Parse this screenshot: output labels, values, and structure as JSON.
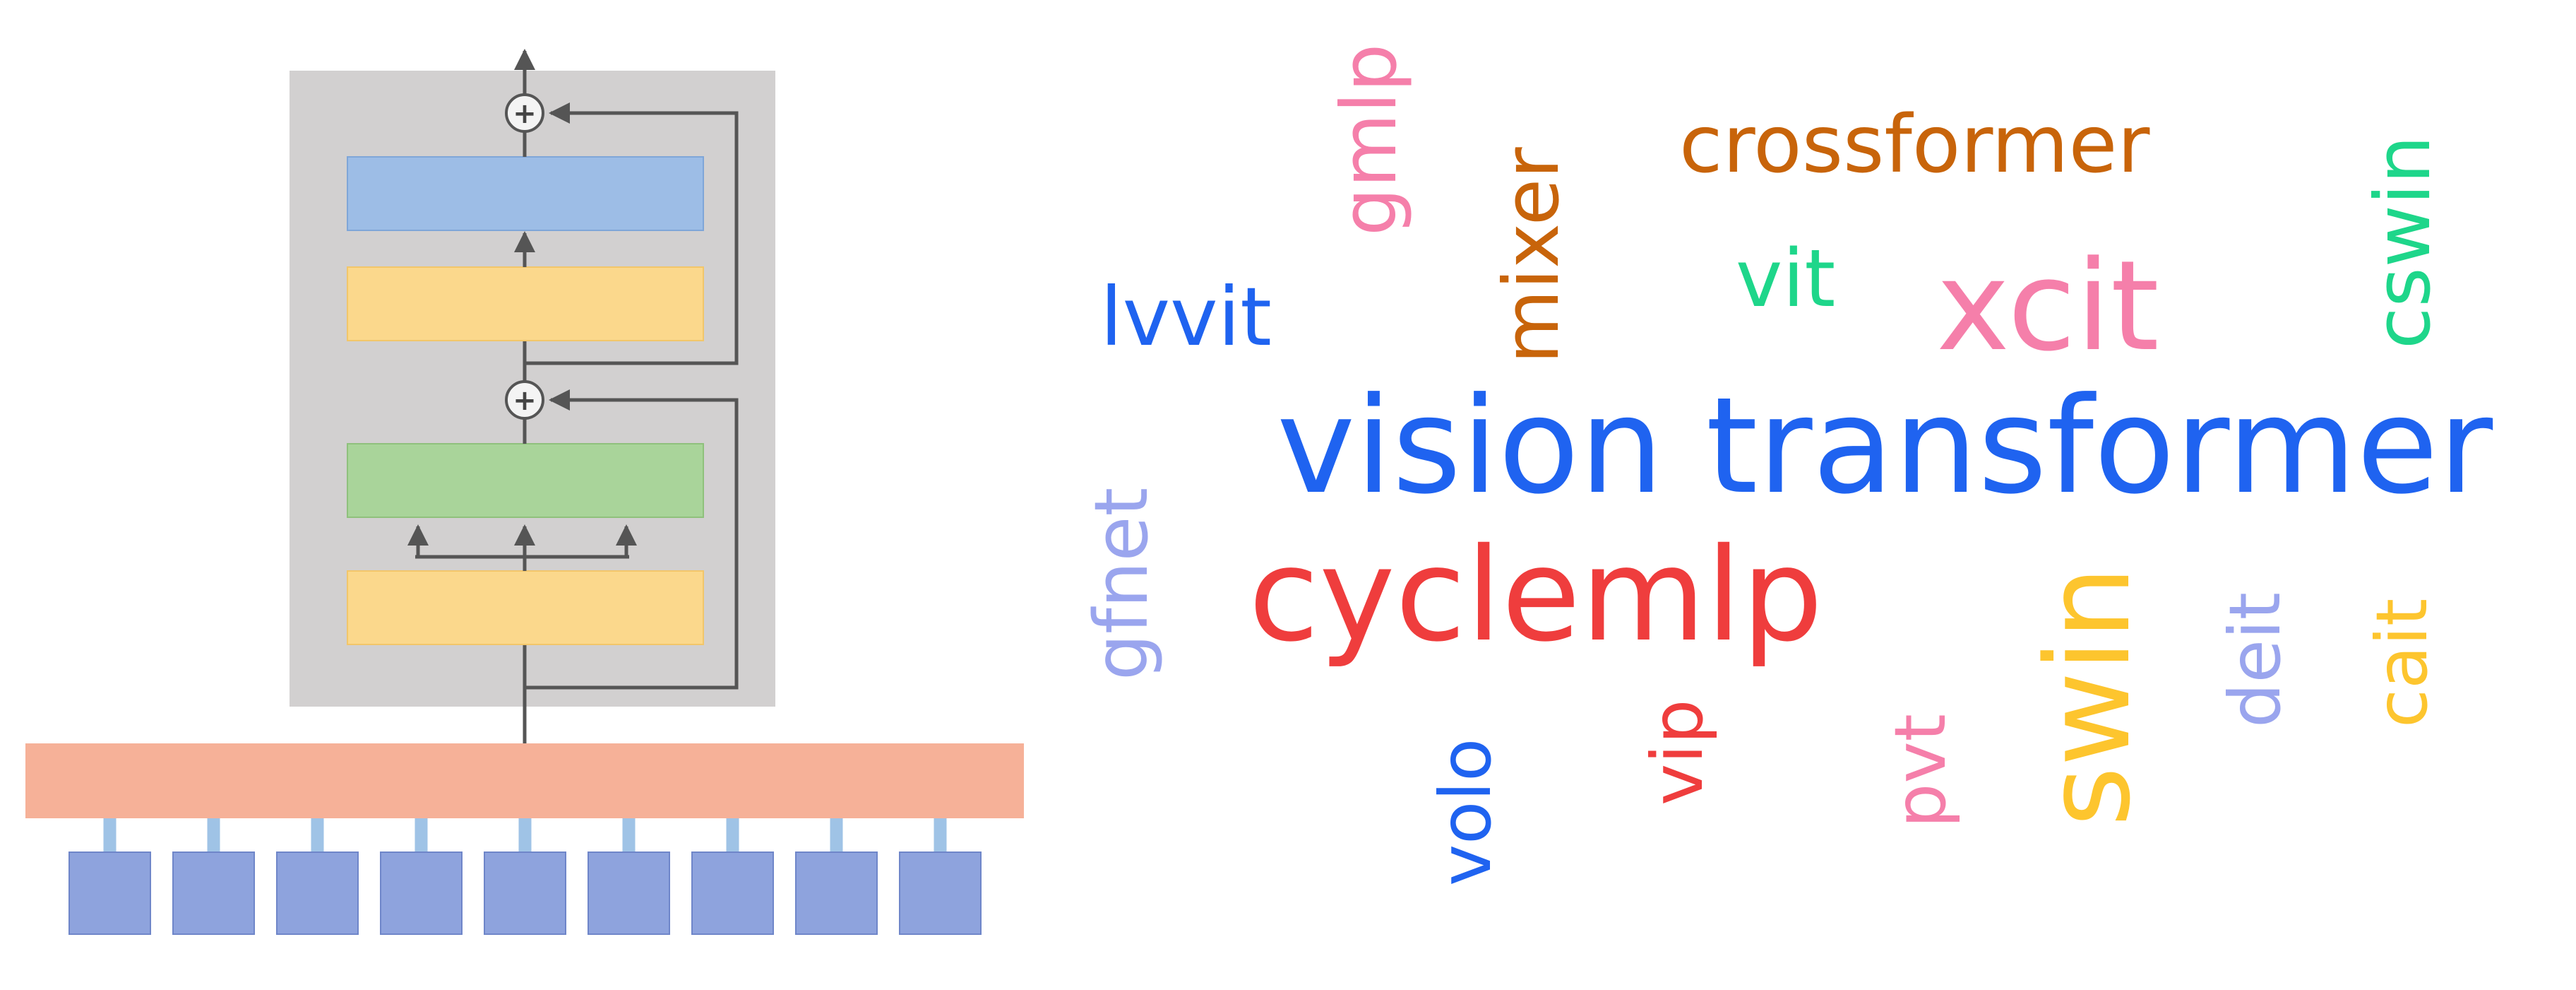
{
  "diagram": {
    "colors": {
      "block_bg": "#d2d0d0",
      "mlp_blue": "#9dbde6",
      "norm_yellow": "#fbd88c",
      "token_mixer_green": "#a9d49a",
      "embedding_orange": "#f6b198",
      "patch_purple": "#8ea3dd",
      "connector_blue": "#9fc3e6",
      "arrow_gray": "#555555"
    },
    "patch_count": 9,
    "residual_add_symbol": "+"
  },
  "wordcloud": {
    "words": [
      {
        "text": "vision transformer",
        "color": "#1f63f0",
        "rotated": false
      },
      {
        "text": "cyclemlp",
        "color": "#ef3d3d",
        "rotated": false
      },
      {
        "text": "xcit",
        "color": "#f57faa",
        "rotated": false
      },
      {
        "text": "crossformer",
        "color": "#c8640a",
        "rotated": false
      },
      {
        "text": "lvvit",
        "color": "#1f63f0",
        "rotated": false
      },
      {
        "text": "vit",
        "color": "#1ed68a",
        "rotated": false
      },
      {
        "text": "gmlp",
        "color": "#f57faa",
        "rotated": true
      },
      {
        "text": "mixer",
        "color": "#c8640a",
        "rotated": true
      },
      {
        "text": "cswin",
        "color": "#1ed68a",
        "rotated": true
      },
      {
        "text": "gfnet",
        "color": "#9aa5ee",
        "rotated": true
      },
      {
        "text": "swin",
        "color": "#fdc52e",
        "rotated": true
      },
      {
        "text": "deit",
        "color": "#9aa5ee",
        "rotated": true
      },
      {
        "text": "cait",
        "color": "#fdc52e",
        "rotated": true
      },
      {
        "text": "volo",
        "color": "#1f63f0",
        "rotated": true
      },
      {
        "text": "vip",
        "color": "#ef3d3d",
        "rotated": true
      },
      {
        "text": "pvt",
        "color": "#f57faa",
        "rotated": true
      }
    ]
  }
}
